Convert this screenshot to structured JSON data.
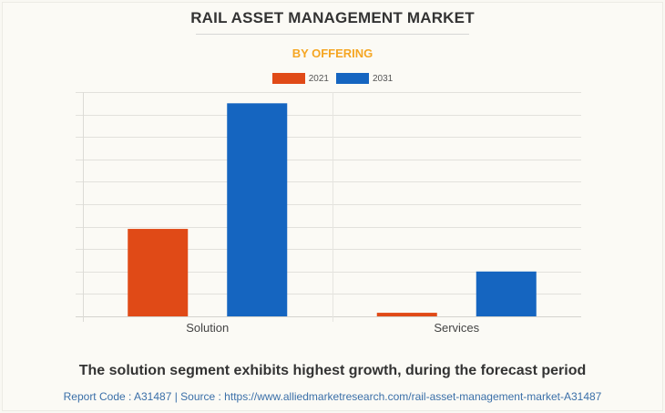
{
  "header": {
    "title": "RAIL ASSET MANAGEMENT MARKET",
    "subtitle": "BY OFFERING"
  },
  "colors": {
    "series_2021": "#e04a17",
    "series_2031": "#1565c0",
    "subtitle": "#f5a623",
    "gridline": "#e2e1dc"
  },
  "chart_data": {
    "type": "bar",
    "title": "RAIL ASSET MANAGEMENT MARKET",
    "subtitle": "BY OFFERING",
    "categories": [
      "Solution",
      "Services"
    ],
    "series": [
      {
        "name": "2021",
        "values": [
          3.9,
          0.16
        ]
      },
      {
        "name": "2031",
        "values": [
          9.5,
          2.0
        ]
      }
    ],
    "value_unit": "relative (gridline units; y-axis values not shown)",
    "xlabel": "",
    "ylabel": "",
    "ylim": [
      0,
      10
    ],
    "gridlines": 10,
    "grid": true,
    "legend": "top-center"
  },
  "footer": {
    "caption": "The solution segment exhibits highest growth, during the forecast period",
    "source": "Report Code : A31487  |  Source : https://www.alliedmarketresearch.com/rail-asset-management-market-A31487"
  }
}
